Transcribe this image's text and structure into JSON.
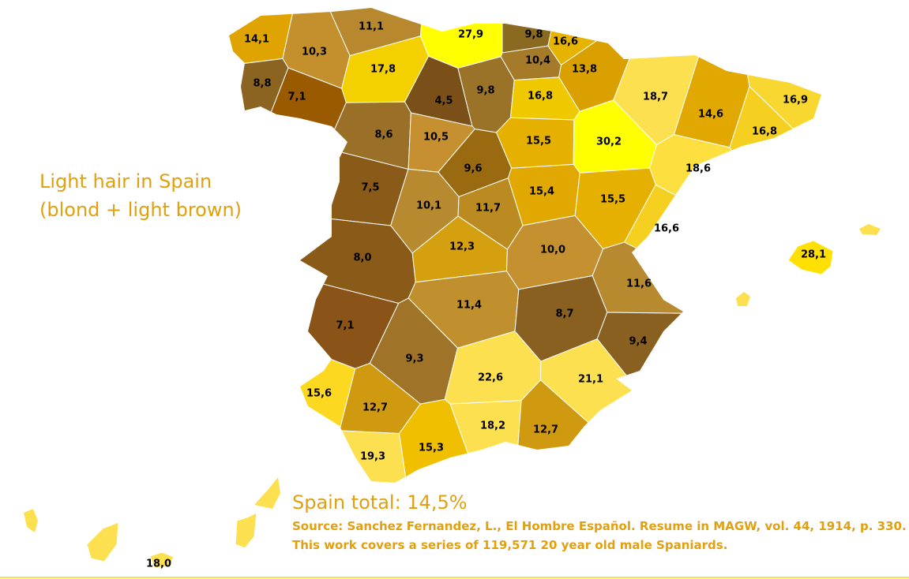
{
  "title": [
    "Light hair in Spain",
    "(blond + light brown)"
  ],
  "regions": [
    {
      "label": "14,1",
      "color": "#e0a400"
    },
    {
      "label": "10,3",
      "color": "#c4902e"
    },
    {
      "label": "11,1",
      "color": "#b8882e"
    },
    {
      "label": "27,9",
      "color": "#ffff00"
    },
    {
      "label": "9,8",
      "color": "#8a6a20"
    },
    {
      "label": "16,6",
      "color": "#e6b400"
    },
    {
      "label": "10,4",
      "color": "#a57a28"
    },
    {
      "label": "13,8",
      "color": "#d9a000"
    },
    {
      "label": "17,8",
      "color": "#f5d000"
    },
    {
      "label": "8,8",
      "color": "#8a6420"
    },
    {
      "label": "7,1",
      "color": "#9a5a00"
    },
    {
      "label": "4,5",
      "color": "#7a5018"
    },
    {
      "label": "9,8",
      "color": "#9a7228"
    },
    {
      "label": "16,8",
      "color": "#f0c800"
    },
    {
      "label": "18,7",
      "color": "#fde050"
    },
    {
      "label": "14,6",
      "color": "#e0a800"
    },
    {
      "label": "16,9",
      "color": "#f8d830"
    },
    {
      "label": "16,8",
      "color": "#f5d020"
    },
    {
      "label": "8,6",
      "color": "#9a7028"
    },
    {
      "label": "10,5",
      "color": "#c69030"
    },
    {
      "label": "15,5",
      "color": "#e6b000"
    },
    {
      "label": "30,2",
      "color": "#ffff00"
    },
    {
      "label": "18,6",
      "color": "#fde040"
    },
    {
      "label": "9,6",
      "color": "#9a6a10"
    },
    {
      "label": "7,5",
      "color": "#8a5a18"
    },
    {
      "label": "15,4",
      "color": "#e0a800"
    },
    {
      "label": "15,5",
      "color": "#e6b000"
    },
    {
      "label": "10,1",
      "color": "#b88a30"
    },
    {
      "label": "11,7",
      "color": "#bb8a20"
    },
    {
      "label": "16,6",
      "color": "#f5d020"
    },
    {
      "label": "28,1",
      "color": "#ffe000"
    },
    {
      "label": "12,3",
      "color": "#d4a010"
    },
    {
      "label": "10,0",
      "color": "#c49030"
    },
    {
      "label": "8,0",
      "color": "#8a5a18"
    },
    {
      "label": "11,6",
      "color": "#b88a30"
    },
    {
      "label": "11,4",
      "color": "#c0902e"
    },
    {
      "label": "8,7",
      "color": "#8a6020"
    },
    {
      "label": "7,1",
      "color": "#8a5418"
    },
    {
      "label": "9,4",
      "color": "#8a6020"
    },
    {
      "label": "9,3",
      "color": "#a07428"
    },
    {
      "label": "22,6",
      "color": "#fde050"
    },
    {
      "label": "21,1",
      "color": "#fde050"
    },
    {
      "label": "15,6",
      "color": "#fdd820"
    },
    {
      "label": "12,7",
      "color": "#d09a10"
    },
    {
      "label": "18,2",
      "color": "#fde050"
    },
    {
      "label": "12,7",
      "color": "#d09a10"
    },
    {
      "label": "15,3",
      "color": "#f0c000"
    },
    {
      "label": "19,3",
      "color": "#fde050"
    },
    {
      "label": "18,0",
      "color": "#fde050"
    }
  ],
  "total": "Spain total: 14,5%",
  "source": [
    "Source: Sanchez Fernandez, L., El Hombre Español. Resume in MAGW, vol. 44, 1914, p. 330.",
    "This work covers a series of 119,571 20 year old male Spaniards."
  ]
}
